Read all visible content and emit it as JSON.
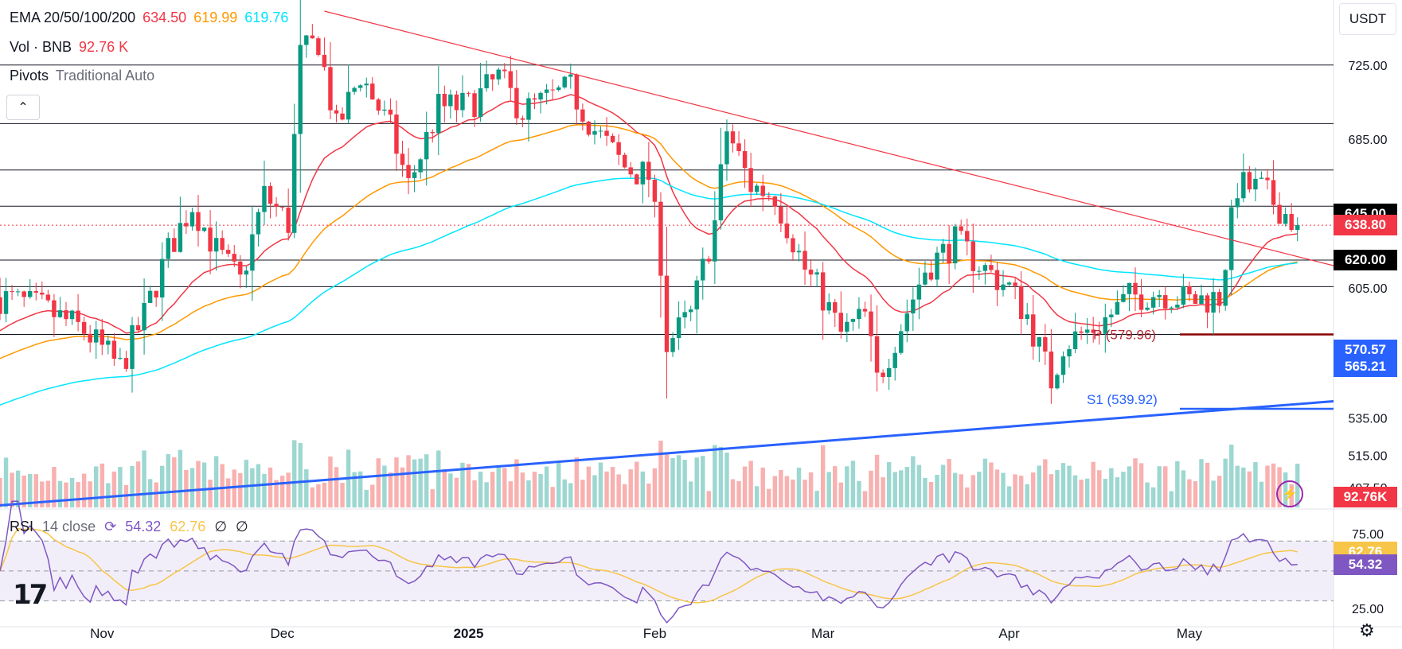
{
  "legend": {
    "ema_label": "EMA 20/50/100/200",
    "ema_values": [
      "634.50",
      "619.99",
      "619.76"
    ],
    "vol_label": "Vol · BNB",
    "vol_value": "92.76 K",
    "pivots_label": "Pivots",
    "pivots_mode": "Traditional Auto",
    "collapse_glyph": "⌃"
  },
  "currency": "USDT",
  "rsi": {
    "label": "RSI",
    "params": "14 close",
    "value": "54.32",
    "ma_value": "62.76",
    "extra": [
      "∅",
      "∅"
    ]
  },
  "badges": [
    {
      "text": "645.00",
      "price": 645.0,
      "color": "#000000"
    },
    {
      "text": "638.80",
      "price": 638.8,
      "color": "#f23645"
    },
    {
      "text": "620.00",
      "price": 620.0,
      "color": "#000000"
    },
    {
      "text": "570.57",
      "price": 571.6,
      "color": "#2962ff"
    },
    {
      "text": "565.21",
      "price": 562.5,
      "color": "#2962ff"
    },
    {
      "text": "92.76K",
      "pane": "volume",
      "color": "#f23645"
    },
    {
      "text": "62.76",
      "pane": "rsi",
      "rsi_level": 62.76,
      "color": "#f7c548"
    },
    {
      "text": "54.32",
      "pane": "rsi",
      "rsi_level": 54.32,
      "color": "#7e57c2"
    }
  ],
  "icons": {
    "lightning": "lightning-icon",
    "settings": "settings-icon",
    "logo": "tradingview-logo"
  },
  "chart_data": {
    "type": "candlestick",
    "symbol": "BNB/USDT",
    "y_axis_ticks": [
      "725.00",
      "685.00",
      "645.00",
      "620.00",
      "605.00",
      "575.00",
      "535.00",
      "515.00",
      "497.50"
    ],
    "y_axis_values": [
      725,
      685,
      645,
      620,
      605,
      575,
      535,
      515,
      497.5
    ],
    "price_range": [
      486,
      760
    ],
    "x_axis_ticks": [
      "Nov",
      "Dec",
      "2025",
      "Feb",
      "Mar",
      "Apr",
      "May"
    ],
    "x_axis_dates": [
      "2024-11-01",
      "2024-12-01",
      "2025-01-01",
      "2025-02-01",
      "2025-03-01",
      "2025-04-01",
      "2025-05-01"
    ],
    "date_range": [
      "2024-10-15",
      "2025-05-25"
    ],
    "last_close": 638.8,
    "horizontal_levels": [
      725,
      693.5,
      668.5,
      649,
      620,
      605.7,
      579.96
    ],
    "pivot_labels": [
      {
        "text": "P (579.96)",
        "price": 579.96,
        "color": "#b22833"
      },
      {
        "text": "S1 (539.92)",
        "price": 539.92,
        "color": "#2962ff"
      }
    ],
    "trendlines": [
      {
        "name": "resistance",
        "from": {
          "date": "2024-12-08",
          "price": 754
        },
        "to": {
          "date": "2025-05-25",
          "price": 617
        },
        "color": "#f23645"
      },
      {
        "name": "support",
        "from": {
          "date": "2024-10-15",
          "price": 488
        },
        "to": {
          "date": "2025-05-25",
          "price": 544
        },
        "color": "#2962ff"
      }
    ],
    "anchors": [
      {
        "date": "2024-10-15",
        "close": 600
      },
      {
        "date": "2024-10-22",
        "close": 594
      },
      {
        "date": "2024-10-29",
        "close": 582
      },
      {
        "date": "2024-11-04",
        "close": 562
      },
      {
        "date": "2024-11-08",
        "close": 590
      },
      {
        "date": "2024-11-12",
        "close": 625
      },
      {
        "date": "2024-11-16",
        "close": 650
      },
      {
        "date": "2024-11-20",
        "close": 625
      },
      {
        "date": "2024-11-24",
        "close": 608
      },
      {
        "date": "2024-11-28",
        "close": 655
      },
      {
        "date": "2024-12-02",
        "close": 640
      },
      {
        "date": "2024-12-04",
        "close": 730
      },
      {
        "date": "2024-12-07",
        "close": 738
      },
      {
        "date": "2024-12-10",
        "close": 690
      },
      {
        "date": "2024-12-14",
        "close": 720
      },
      {
        "date": "2024-12-19",
        "close": 690
      },
      {
        "date": "2024-12-22",
        "close": 660
      },
      {
        "date": "2024-12-27",
        "close": 702
      },
      {
        "date": "2025-01-01",
        "close": 703
      },
      {
        "date": "2025-01-06",
        "close": 718
      },
      {
        "date": "2025-01-10",
        "close": 700
      },
      {
        "date": "2025-01-18",
        "close": 712
      },
      {
        "date": "2025-01-22",
        "close": 690
      },
      {
        "date": "2025-01-27",
        "close": 670
      },
      {
        "date": "2025-01-31",
        "close": 665
      },
      {
        "date": "2025-02-02",
        "close": 620
      },
      {
        "date": "2025-02-03",
        "close": 575
      },
      {
        "date": "2025-02-07",
        "close": 590
      },
      {
        "date": "2025-02-11",
        "close": 640
      },
      {
        "date": "2025-02-13",
        "close": 690
      },
      {
        "date": "2025-02-17",
        "close": 660
      },
      {
        "date": "2025-02-21",
        "close": 655
      },
      {
        "date": "2025-02-26",
        "close": 615
      },
      {
        "date": "2025-03-01",
        "close": 600
      },
      {
        "date": "2025-03-04",
        "close": 580
      },
      {
        "date": "2025-03-08",
        "close": 590
      },
      {
        "date": "2025-03-10",
        "close": 555
      },
      {
        "date": "2025-03-14",
        "close": 585
      },
      {
        "date": "2025-03-18",
        "close": 615
      },
      {
        "date": "2025-03-23",
        "close": 630
      },
      {
        "date": "2025-03-28",
        "close": 615
      },
      {
        "date": "2025-04-01",
        "close": 605
      },
      {
        "date": "2025-04-04",
        "close": 590
      },
      {
        "date": "2025-04-08",
        "close": 555
      },
      {
        "date": "2025-04-10",
        "close": 575
      },
      {
        "date": "2025-04-16",
        "close": 585
      },
      {
        "date": "2025-04-21",
        "close": 600
      },
      {
        "date": "2025-04-26",
        "close": 603
      },
      {
        "date": "2025-05-01",
        "close": 598
      },
      {
        "date": "2025-05-06",
        "close": 600
      },
      {
        "date": "2025-05-09",
        "close": 660
      },
      {
        "date": "2025-05-13",
        "close": 658
      },
      {
        "date": "2025-05-17",
        "close": 645
      },
      {
        "date": "2025-05-19",
        "close": 638.8
      }
    ],
    "rsi_levels": [
      70,
      50,
      30
    ],
    "rsi_axis_ticks": [
      "75.00",
      "25.00"
    ],
    "rsi_axis_values": [
      75,
      25
    ]
  }
}
